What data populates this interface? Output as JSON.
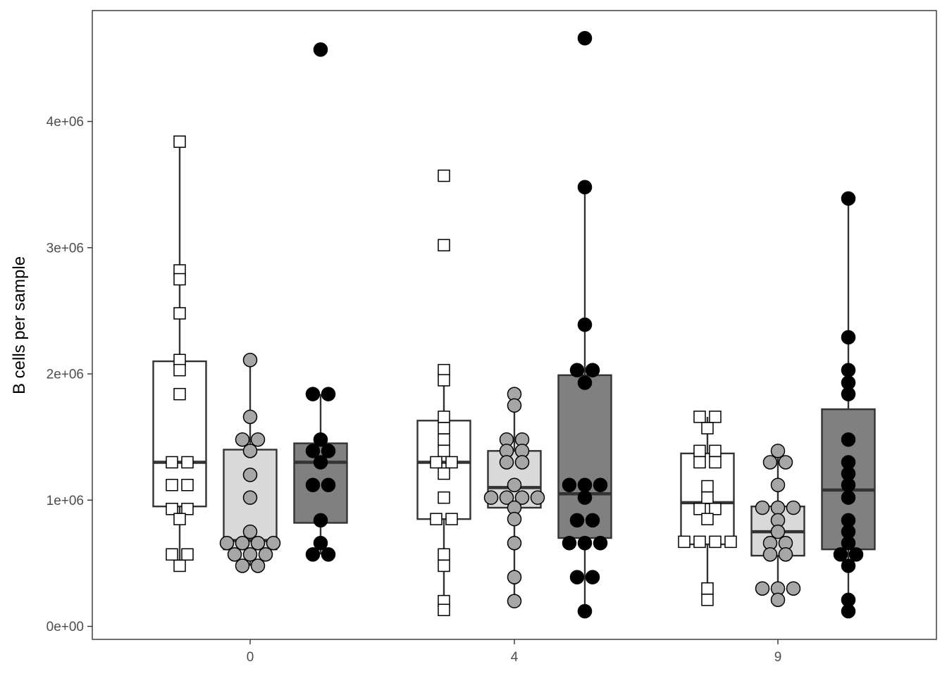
{
  "chart_data": {
    "type": "boxplot",
    "title": "",
    "xlabel": "",
    "ylabel": "B cells per sample",
    "ylim": [
      0,
      4800000
    ],
    "x_ticks": [
      "0",
      "4",
      "9"
    ],
    "y_ticks": [
      {
        "value": 0,
        "label": "0e+00"
      },
      {
        "value": 1000000,
        "label": "1e+06"
      },
      {
        "value": 2000000,
        "label": "2e+06"
      },
      {
        "value": 3000000,
        "label": "3e+06"
      },
      {
        "value": 4000000,
        "label": "4e+06"
      }
    ],
    "grid": false,
    "legend": "none",
    "styles": [
      {
        "fill": "#ffffff",
        "point_fill": "#ffffff",
        "point_shape": "square"
      },
      {
        "fill": "#d9d9d9",
        "point_fill": "#a6a6a6",
        "point_shape": "circle"
      },
      {
        "fill": "#808080",
        "point_fill": "#000000",
        "point_shape": "circle"
      }
    ],
    "groups": [
      {
        "x": "0",
        "style": 0,
        "box": {
          "q1": 950000,
          "median": 1300000,
          "q3": 2100000,
          "whisker_low": 480000,
          "whisker_high": 3840000
        },
        "points": [
          3840000,
          2820000,
          2750000,
          2480000,
          2110000,
          2030000,
          1840000,
          1300000,
          1300000,
          1120000,
          1120000,
          930000,
          930000,
          850000,
          570000,
          570000,
          480000
        ]
      },
      {
        "x": "0",
        "style": 1,
        "box": {
          "q1": 610000,
          "median": 680000,
          "q3": 1400000,
          "whisker_low": 480000,
          "whisker_high": 2110000
        },
        "points": [
          2110000,
          1660000,
          1480000,
          1480000,
          1390000,
          1200000,
          1020000,
          750000,
          660000,
          660000,
          660000,
          660000,
          570000,
          570000,
          570000,
          480000,
          480000
        ]
      },
      {
        "x": "0",
        "style": 2,
        "box": {
          "q1": 820000,
          "median": 1300000,
          "q3": 1450000,
          "whisker_low": 570000,
          "whisker_high": 1840000
        },
        "points": [
          4570000,
          1840000,
          1840000,
          1480000,
          1390000,
          1390000,
          1300000,
          1120000,
          1120000,
          840000,
          660000,
          570000,
          570000
        ]
      },
      {
        "x": "4",
        "style": 0,
        "box": {
          "q1": 850000,
          "median": 1300000,
          "q3": 1630000,
          "whisker_low": 130000,
          "whisker_high": 2030000
        },
        "points": [
          3570000,
          3020000,
          2030000,
          1950000,
          1660000,
          1570000,
          1480000,
          1390000,
          1300000,
          1300000,
          1210000,
          1020000,
          850000,
          850000,
          570000,
          480000,
          200000,
          130000
        ]
      },
      {
        "x": "4",
        "style": 1,
        "box": {
          "q1": 940000,
          "median": 1100000,
          "q3": 1390000,
          "whisker_low": 200000,
          "whisker_high": 1840000
        },
        "points": [
          1840000,
          1750000,
          1480000,
          1480000,
          1390000,
          1390000,
          1300000,
          1300000,
          1120000,
          1020000,
          1020000,
          1020000,
          1020000,
          940000,
          850000,
          660000,
          390000,
          200000
        ]
      },
      {
        "x": "4",
        "style": 2,
        "box": {
          "q1": 700000,
          "median": 1050000,
          "q3": 1990000,
          "whisker_low": 120000,
          "whisker_high": 3480000
        },
        "points": [
          4660000,
          3480000,
          2390000,
          2030000,
          2030000,
          1930000,
          1120000,
          1120000,
          1120000,
          1020000,
          840000,
          840000,
          660000,
          660000,
          660000,
          390000,
          390000,
          120000
        ]
      },
      {
        "x": "9",
        "style": 0,
        "box": {
          "q1": 650000,
          "median": 980000,
          "q3": 1370000,
          "whisker_low": 210000,
          "whisker_high": 1660000
        },
        "points": [
          1660000,
          1660000,
          1570000,
          1390000,
          1390000,
          1300000,
          1300000,
          1110000,
          1020000,
          930000,
          930000,
          850000,
          670000,
          670000,
          670000,
          670000,
          300000,
          210000
        ]
      },
      {
        "x": "9",
        "style": 1,
        "box": {
          "q1": 560000,
          "median": 750000,
          "q3": 950000,
          "whisker_low": 210000,
          "whisker_high": 1390000
        },
        "points": [
          1390000,
          1300000,
          1300000,
          1120000,
          940000,
          940000,
          940000,
          840000,
          750000,
          660000,
          660000,
          570000,
          570000,
          300000,
          300000,
          300000,
          210000
        ]
      },
      {
        "x": "9",
        "style": 2,
        "box": {
          "q1": 610000,
          "median": 1080000,
          "q3": 1720000,
          "whisker_low": 120000,
          "whisker_high": 3390000
        },
        "points": [
          3390000,
          2290000,
          2030000,
          1930000,
          1840000,
          1480000,
          1300000,
          1210000,
          1120000,
          1020000,
          840000,
          750000,
          660000,
          570000,
          570000,
          480000,
          210000,
          120000
        ]
      }
    ]
  }
}
